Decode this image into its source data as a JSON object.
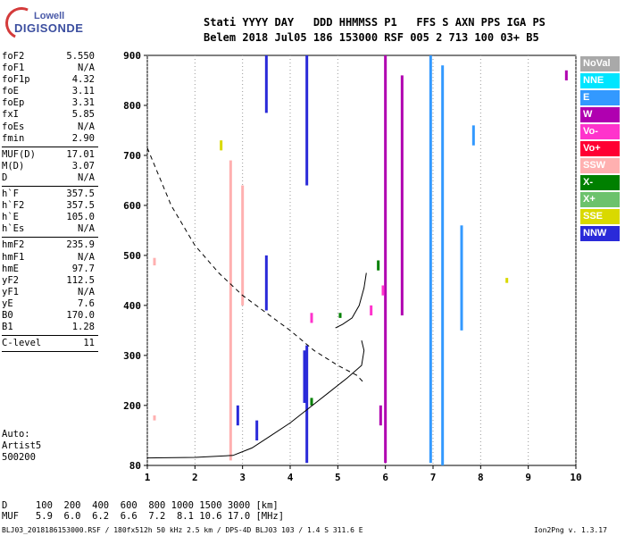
{
  "logo": {
    "line1": "Lowell",
    "line2": "DIGISONDE"
  },
  "header": {
    "labels": "Stati YYYY DAY   DDD HHMMSS P1   FFS S AXN PPS IGA PS",
    "values": "Belem 2018 Jul05 186 153000 RSF 005 2 713 100 03+ B5"
  },
  "params": [
    [
      {
        "k": "foF2",
        "v": "5.550"
      },
      {
        "k": "foF1",
        "v": "N/A"
      },
      {
        "k": "foF1p",
        "v": "4.32"
      },
      {
        "k": "foE",
        "v": "3.11"
      },
      {
        "k": "foEp",
        "v": "3.31"
      },
      {
        "k": "fxI",
        "v": "5.85"
      },
      {
        "k": "foEs",
        "v": "N/A"
      },
      {
        "k": "fmin",
        "v": "2.90"
      }
    ],
    [
      {
        "k": "MUF(D)",
        "v": "17.01"
      },
      {
        "k": "M(D)",
        "v": "3.07"
      },
      {
        "k": "D",
        "v": "N/A"
      }
    ],
    [
      {
        "k": "h`F",
        "v": "357.5"
      },
      {
        "k": "h`F2",
        "v": "357.5"
      },
      {
        "k": "h`E",
        "v": "105.0"
      },
      {
        "k": "h`Es",
        "v": "N/A"
      }
    ],
    [
      {
        "k": "hmF2",
        "v": "235.9"
      },
      {
        "k": "hmF1",
        "v": "N/A"
      },
      {
        "k": "hmE",
        "v": "97.7"
      },
      {
        "k": "yF2",
        "v": "112.5"
      },
      {
        "k": "yF1",
        "v": "N/A"
      },
      {
        "k": "yE",
        "v": "7.6"
      },
      {
        "k": "B0",
        "v": "170.0"
      },
      {
        "k": "B1",
        "v": "1.28"
      }
    ],
    [
      {
        "k": "C-level",
        "v": "11"
      }
    ]
  ],
  "auto": {
    "line1": "Auto:",
    "line2": "Artist5",
    "line3": "500200"
  },
  "legend": [
    {
      "label": "NoVal",
      "color": "#a9a9a9"
    },
    {
      "label": "NNE",
      "color": "#00e5ff"
    },
    {
      "label": "E",
      "color": "#3399ff"
    },
    {
      "label": "W",
      "color": "#b000b0"
    },
    {
      "label": "Vo-",
      "color": "#ff33cc"
    },
    {
      "label": "Vo+",
      "color": "#ff0033"
    },
    {
      "label": "SSW",
      "color": "#ffb0b0"
    },
    {
      "label": "X-",
      "color": "#008000"
    },
    {
      "label": "X+",
      "color": "#6cc26c"
    },
    {
      "label": "SSE",
      "color": "#d9d900"
    },
    {
      "label": "NNW",
      "color": "#2a2ad9"
    }
  ],
  "footer": {
    "d_row": "D     100  200  400  600  800 1000 1500 3000 [km]",
    "muf_row": "MUF   5.9  6.0  6.2  6.6  7.2  8.1 10.6 17.0 [MHz]",
    "file_row": "BLJ03_2018186153000.RSF / 180fx512h 50 kHz 2.5 km / DPS-4D BLJ03 103 / 1.4 S 311.6 E",
    "version": "Ion2Png v. 1.3.17"
  },
  "chart_data": {
    "type": "scatter",
    "xlabel": "",
    "ylabel": "",
    "xlim": [
      1,
      10
    ],
    "ylim": [
      80,
      900
    ],
    "xticks": [
      1,
      2,
      3,
      4,
      5,
      6,
      7,
      8,
      9,
      10
    ],
    "yticks": [
      80,
      200,
      300,
      400,
      500,
      600,
      700,
      800,
      900
    ],
    "grid": "vertical dotted at each integer MHz",
    "series": [
      {
        "name": "NNW",
        "values": [
          {
            "x": 3.5,
            "y0": 785,
            "y1": 905
          },
          {
            "x": 3.5,
            "y0": 390,
            "y1": 500
          },
          {
            "x": 4.35,
            "y0": 640,
            "y1": 905
          },
          {
            "x": 4.35,
            "y0": 85,
            "y1": 320
          },
          {
            "x": 4.3,
            "y0": 205,
            "y1": 310
          },
          {
            "x": 2.9,
            "y0": 160,
            "y1": 200
          },
          {
            "x": 3.3,
            "y0": 130,
            "y1": 170
          }
        ]
      },
      {
        "name": "W",
        "values": [
          {
            "x": 6.0,
            "y0": 85,
            "y1": 905
          },
          {
            "x": 6.35,
            "y0": 380,
            "y1": 860
          },
          {
            "x": 5.9,
            "y0": 160,
            "y1": 200
          },
          {
            "x": 9.8,
            "y0": 850,
            "y1": 870
          }
        ]
      },
      {
        "name": "E",
        "values": [
          {
            "x": 7.2,
            "y0": 80,
            "y1": 880
          },
          {
            "x": 6.95,
            "y0": 85,
            "y1": 900
          },
          {
            "x": 7.85,
            "y0": 720,
            "y1": 760
          },
          {
            "x": 7.6,
            "y0": 350,
            "y1": 560
          }
        ]
      },
      {
        "name": "Vo-",
        "values": [
          {
            "x": 5.7,
            "y0": 380,
            "y1": 400
          },
          {
            "x": 5.95,
            "y0": 420,
            "y1": 440
          },
          {
            "x": 4.45,
            "y0": 365,
            "y1": 385
          }
        ]
      },
      {
        "name": "X-",
        "values": [
          {
            "x": 5.85,
            "y0": 470,
            "y1": 490
          },
          {
            "x": 4.45,
            "y0": 200,
            "y1": 215
          },
          {
            "x": 5.05,
            "y0": 375,
            "y1": 385
          }
        ]
      },
      {
        "name": "SSW",
        "values": [
          {
            "x": 1.15,
            "y0": 480,
            "y1": 495
          },
          {
            "x": 1.15,
            "y0": 170,
            "y1": 180
          },
          {
            "x": 2.75,
            "y0": 90,
            "y1": 690
          },
          {
            "x": 3.0,
            "y0": 400,
            "y1": 640
          }
        ]
      },
      {
        "name": "SSE",
        "values": [
          {
            "x": 2.55,
            "y0": 710,
            "y1": 730
          },
          {
            "x": 8.55,
            "y0": 445,
            "y1": 455
          }
        ]
      }
    ],
    "traces": [
      {
        "style": "solid",
        "points": [
          [
            1,
            95
          ],
          [
            2,
            96
          ],
          [
            2.8,
            100
          ],
          [
            3.2,
            115
          ],
          [
            3.6,
            140
          ],
          [
            4,
            165
          ],
          [
            4.4,
            195
          ],
          [
            4.8,
            225
          ],
          [
            5.2,
            255
          ],
          [
            5.5,
            280
          ],
          [
            5.55,
            310
          ],
          [
            5.5,
            330
          ]
        ]
      },
      {
        "style": "dashed",
        "points": [
          [
            1,
            715
          ],
          [
            1.5,
            600
          ],
          [
            2,
            520
          ],
          [
            2.5,
            465
          ],
          [
            3,
            420
          ],
          [
            3.5,
            385
          ],
          [
            4,
            350
          ],
          [
            4.5,
            310
          ],
          [
            5,
            280
          ],
          [
            5.4,
            260
          ],
          [
            5.55,
            245
          ]
        ]
      },
      {
        "style": "solid",
        "points": [
          [
            4.95,
            355
          ],
          [
            5.1,
            362
          ],
          [
            5.3,
            375
          ],
          [
            5.45,
            400
          ],
          [
            5.55,
            435
          ],
          [
            5.6,
            465
          ]
        ]
      }
    ]
  }
}
